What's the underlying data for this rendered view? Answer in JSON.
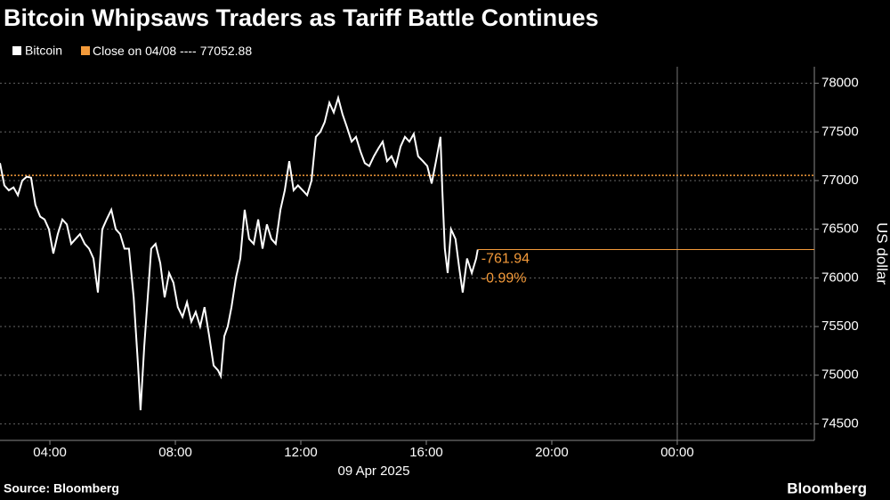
{
  "chart_data": {
    "type": "line",
    "title": "Bitcoin Whipsaws Traders as Tariff Battle Continues",
    "y_axis_label": "US dollar",
    "x_sublabel": "09 Apr 2025",
    "source": "Source: Bloomberg",
    "brand": "Bloomberg",
    "series": [
      {
        "name": "Bitcoin",
        "color": "#ffffff",
        "x": [
          2.41,
          2.55,
          2.69,
          2.84,
          2.98,
          3.12,
          3.26,
          3.4,
          3.54,
          3.69,
          3.83,
          3.97,
          4.11,
          4.25,
          4.4,
          4.54,
          4.68,
          4.82,
          4.96,
          5.11,
          5.25,
          5.39,
          5.53,
          5.67,
          5.81,
          5.96,
          6.1,
          6.24,
          6.38,
          6.52,
          6.67,
          6.81,
          6.89,
          7.01,
          7.12,
          7.23,
          7.37,
          7.52,
          7.66,
          7.8,
          7.94,
          8.08,
          8.23,
          8.37,
          8.51,
          8.65,
          8.79,
          8.93,
          9.08,
          9.22,
          9.36,
          9.45,
          9.56,
          9.67,
          9.79,
          9.93,
          10.07,
          10.21,
          10.35,
          10.5,
          10.64,
          10.78,
          10.92,
          11.06,
          11.2,
          11.35,
          11.49,
          11.63,
          11.77,
          11.91,
          12.06,
          12.2,
          12.34,
          12.48,
          12.62,
          12.76,
          12.91,
          13.05,
          13.19,
          13.33,
          13.47,
          13.62,
          13.76,
          13.9,
          14.04,
          14.18,
          14.33,
          14.47,
          14.61,
          14.75,
          14.89,
          15.03,
          15.18,
          15.32,
          15.46,
          15.6,
          15.74,
          15.89,
          16.03,
          16.17,
          16.31,
          16.45,
          16.51,
          16.59,
          16.68,
          16.79,
          16.93,
          17.05,
          17.16,
          17.3,
          17.45,
          17.59,
          17.64
        ],
        "values": [
          77180,
          76950,
          76900,
          76930,
          76850,
          77000,
          77040,
          77030,
          76750,
          76630,
          76600,
          76500,
          76250,
          76450,
          76600,
          76550,
          76350,
          76400,
          76450,
          76350,
          76300,
          76200,
          75850,
          76500,
          76600,
          76700,
          76500,
          76450,
          76300,
          76300,
          75800,
          75100,
          74640,
          75300,
          75800,
          76300,
          76350,
          76150,
          75800,
          76050,
          75950,
          75700,
          75600,
          75750,
          75550,
          75650,
          75500,
          75700,
          75400,
          75100,
          75050,
          74990,
          75400,
          75500,
          75700,
          76000,
          76200,
          76700,
          76400,
          76350,
          76600,
          76300,
          76550,
          76400,
          76350,
          76700,
          76900,
          77200,
          76900,
          76950,
          76900,
          76850,
          77000,
          77450,
          77500,
          77600,
          77800,
          77700,
          77850,
          77680,
          77550,
          77400,
          77450,
          77300,
          77180,
          77150,
          77250,
          77330,
          77400,
          77200,
          77250,
          77150,
          77350,
          77450,
          77400,
          77480,
          77250,
          77200,
          77150,
          76970,
          77200,
          77450,
          76900,
          76300,
          76050,
          76500,
          76400,
          76100,
          75850,
          76200,
          76050,
          76200,
          76290.94
        ]
      }
    ],
    "reference_line": {
      "label": "Close on 04/08 ----",
      "value": 77052.88,
      "color": "#f39a3a"
    },
    "change": {
      "value": -761.94,
      "label": "-761.94"
    },
    "change_pct": {
      "value": -0.99,
      "label": "-0.99%"
    },
    "xlim": [
      2.41,
      28.37
    ],
    "xticks": [
      {
        "value": 4,
        "label": "04:00"
      },
      {
        "value": 8,
        "label": "08:00"
      },
      {
        "value": 12,
        "label": "12:00"
      },
      {
        "value": 16,
        "label": "16:00"
      },
      {
        "value": 20,
        "label": "20:00"
      },
      {
        "value": 24,
        "label": "00:00"
      }
    ],
    "ylim": [
      74330,
      78170
    ],
    "yticks": [
      74500,
      75000,
      75500,
      76000,
      76500,
      77000,
      77500,
      78000
    ],
    "grid": true
  }
}
